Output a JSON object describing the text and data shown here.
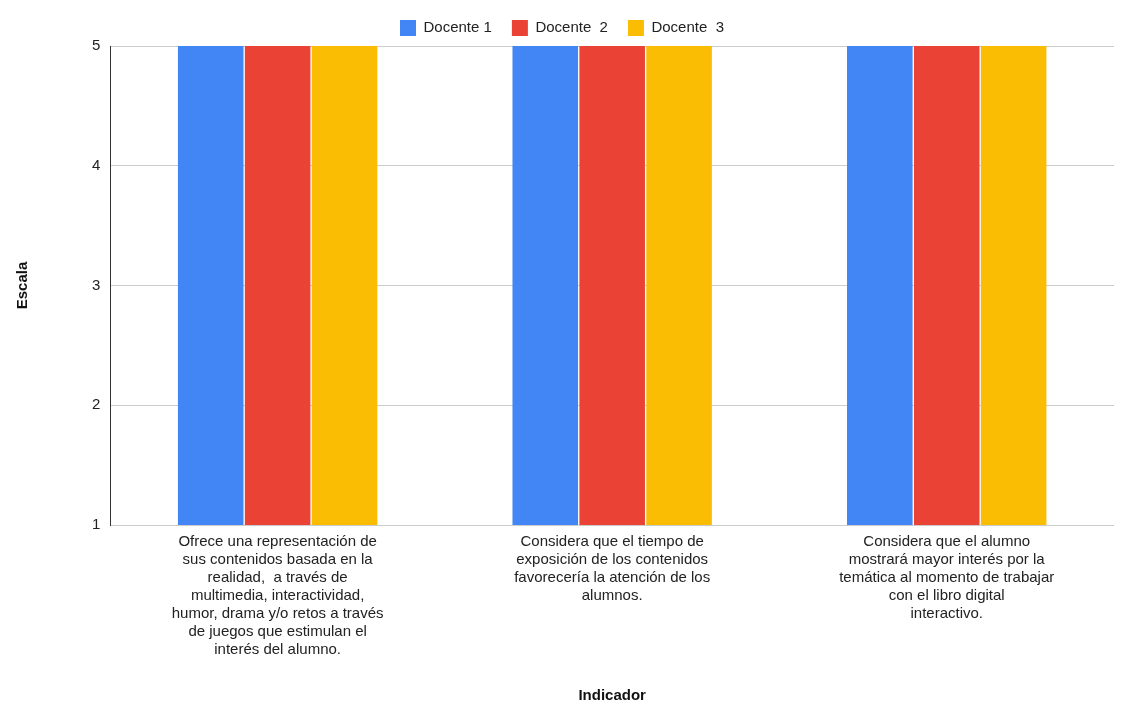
{
  "chart_data": {
    "type": "bar",
    "xlabel": "Indicador",
    "ylabel": "Escala",
    "categories": [
      "Ofrece una representación de sus contenidos basada en la realidad,  a través de multimedia, interactividad, humor, drama y/o retos a través de juegos que estimulan el interés del alumno.",
      "Considera que el tiempo de exposición de los contenidos favorecería la atención de los alumnos.",
      "Considera que el alumno mostrará mayor interés por la temática al momento de trabajar con el libro digital interactivo."
    ],
    "series": [
      {
        "name": "Docente 1",
        "color": "#4285f4",
        "values": [
          5,
          5,
          5
        ]
      },
      {
        "name": "Docente  2",
        "color": "#ea4335",
        "values": [
          5,
          5,
          5
        ]
      },
      {
        "name": "Docente  3",
        "color": "#fbbc04",
        "values": [
          5,
          5,
          5
        ]
      }
    ],
    "ylim": [
      1,
      5
    ],
    "yticks": [
      1,
      2,
      3,
      4,
      5
    ],
    "grid": "y",
    "legend": "top"
  }
}
